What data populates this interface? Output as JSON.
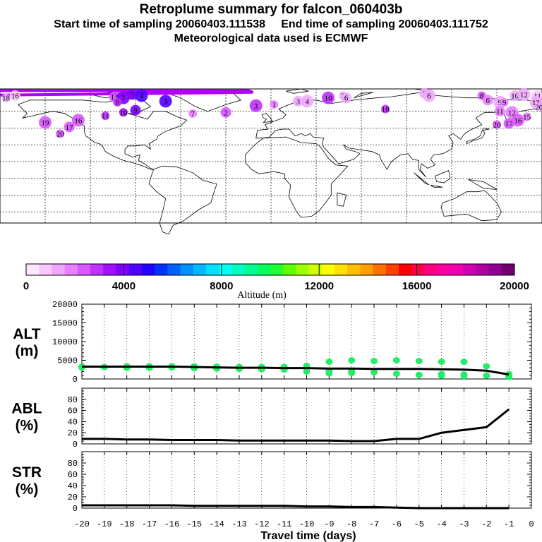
{
  "header": {
    "title": "Retroplume summary for falcon_060403b",
    "line2_start": "Start time of sampling 20060403.111538",
    "line2_end": "End time of sampling 20060403.111752",
    "line3": "Meteorological data used is ECMWF"
  },
  "colorbar": {
    "ticks": [
      "0",
      "4000",
      "8000",
      "12000",
      "16000",
      "20000"
    ],
    "label": "Altitude (m)",
    "colors": [
      "#ffe8ff",
      "#f8c8ff",
      "#f0a8ff",
      "#e880ff",
      "#d858ff",
      "#c030ff",
      "#a010ff",
      "#8000ff",
      "#5000ff",
      "#2000ff",
      "#0030ff",
      "#0060ff",
      "#0090ff",
      "#00b8ff",
      "#00e0ff",
      "#00ffee",
      "#00ffc0",
      "#00ff90",
      "#00ff60",
      "#20ff30",
      "#60ff00",
      "#a0ff00",
      "#d0ff00",
      "#ffff00",
      "#ffe000",
      "#ffc000",
      "#ffa000",
      "#ff7000",
      "#ff4000",
      "#ff0000",
      "#ff0050",
      "#ff0080",
      "#ff00a0",
      "#f000b0",
      "#d000b0",
      "#b000a0",
      "#900090",
      "#700070"
    ]
  },
  "map": {
    "plume_labels": [
      {
        "lon": -176,
        "lat": 72,
        "label": "18",
        "alt": 1200
      },
      {
        "lon": -170,
        "lat": 74,
        "label": "16",
        "alt": 800
      },
      {
        "lon": -150,
        "lat": 50,
        "label": "19",
        "alt": 2400
      },
      {
        "lon": -140,
        "lat": 40,
        "label": "20",
        "alt": 2600
      },
      {
        "lon": -134,
        "lat": 46,
        "label": "17",
        "alt": 2200
      },
      {
        "lon": -128,
        "lat": 52,
        "label": "16",
        "alt": 2500
      },
      {
        "lon": -110,
        "lat": 56,
        "label": "11",
        "alt": 2800
      },
      {
        "lon": -104,
        "lat": 73,
        "label": "13",
        "alt": 2600
      },
      {
        "lon": -98,
        "lat": 72,
        "label": "7",
        "alt": 3800
      },
      {
        "lon": -102,
        "lat": 68,
        "label": "8",
        "alt": 3000
      },
      {
        "lon": -92,
        "lat": 75,
        "label": "5",
        "alt": 4200
      },
      {
        "lon": -86,
        "lat": 74,
        "label": "4",
        "alt": 4600
      },
      {
        "lon": -98,
        "lat": 59,
        "label": "10",
        "alt": 3400
      },
      {
        "lon": -90,
        "lat": 61,
        "label": "9",
        "alt": 4100
      },
      {
        "lon": -70,
        "lat": 69,
        "label": "3",
        "alt": 4400
      },
      {
        "lon": -52,
        "lat": 58,
        "label": "7",
        "alt": 2000
      },
      {
        "lon": -30,
        "lat": 59,
        "label": "2",
        "alt": 2300
      },
      {
        "lon": -10,
        "lat": 65,
        "label": "3",
        "alt": 2700
      },
      {
        "lon": 2,
        "lat": 66,
        "label": "1",
        "alt": 1800
      },
      {
        "lon": 18,
        "lat": 69,
        "label": "3",
        "alt": 1500
      },
      {
        "lon": 24,
        "lat": 69,
        "label": "4",
        "alt": 1300
      },
      {
        "lon": 48,
        "lat": 74,
        "label": "5",
        "alt": 1200
      },
      {
        "lon": 50,
        "lat": 72,
        "label": "6",
        "alt": 1100
      },
      {
        "lon": 38,
        "lat": 72,
        "label": "10",
        "alt": 2900
      },
      {
        "lon": 76,
        "lat": 62,
        "label": "18",
        "alt": 2800
      },
      {
        "lon": 102,
        "lat": 76,
        "label": "7",
        "alt": 1400
      },
      {
        "lon": 105,
        "lat": 74,
        "label": "6",
        "alt": 1300
      },
      {
        "lon": 140,
        "lat": 74,
        "label": "8",
        "alt": 2600
      },
      {
        "lon": 144,
        "lat": 70,
        "label": "6",
        "alt": 1700
      },
      {
        "lon": 152,
        "lat": 68,
        "label": "9",
        "alt": 1500
      },
      {
        "lon": 155,
        "lat": 68,
        "label": "9",
        "alt": 1700
      },
      {
        "lon": 162,
        "lat": 74,
        "label": "10",
        "alt": 1200
      },
      {
        "lon": 168,
        "lat": 75,
        "label": "12",
        "alt": 1100
      },
      {
        "lon": 176,
        "lat": 73,
        "label": "15",
        "alt": 1000
      },
      {
        "lon": 183,
        "lat": 74,
        "label": "11",
        "alt": 1000
      },
      {
        "lon": 176,
        "lat": 68,
        "label": "13",
        "alt": 1300
      },
      {
        "lon": 182,
        "lat": 64,
        "label": "20",
        "alt": 1500
      },
      {
        "lon": 152,
        "lat": 60,
        "label": "11",
        "alt": 1800
      },
      {
        "lon": 160,
        "lat": 59,
        "label": "12",
        "alt": 1900
      },
      {
        "lon": 150,
        "lat": 48,
        "label": "20",
        "alt": 2200
      },
      {
        "lon": 158,
        "lat": 49,
        "label": "17",
        "alt": 2400
      },
      {
        "lon": 164,
        "lat": 52,
        "label": "16",
        "alt": 2300
      },
      {
        "lon": 170,
        "lat": 55,
        "label": "15",
        "alt": 1800
      }
    ]
  },
  "chart_data": [
    {
      "type": "line",
      "name": "ALT",
      "ylabel_top": "ALT",
      "ylabel_bottom": "(m)",
      "ylim": [
        0,
        20000
      ],
      "yticks": [
        "0",
        "5000",
        "10000",
        "15000",
        "20000"
      ],
      "x": [
        -20,
        -19,
        -18,
        -17,
        -16,
        -15,
        -14,
        -13,
        -12,
        -11,
        -10,
        -9,
        -8,
        -7,
        -6,
        -5,
        -4,
        -3,
        -2,
        -1
      ],
      "values": [
        3300,
        3300,
        3300,
        3300,
        3300,
        3200,
        3100,
        3000,
        3000,
        2900,
        2900,
        2800,
        2800,
        2700,
        2700,
        2700,
        2600,
        2500,
        2200,
        1200
      ],
      "scatter": [
        {
          "x": -20,
          "y": [
            3100,
            3300
          ]
        },
        {
          "x": -19,
          "y": [
            3200
          ]
        },
        {
          "x": -18,
          "y": [
            3000,
            3400
          ]
        },
        {
          "x": -17,
          "y": [
            3000,
            3400
          ]
        },
        {
          "x": -16,
          "y": [
            3100,
            3400
          ]
        },
        {
          "x": -15,
          "y": [
            2900,
            3400
          ]
        },
        {
          "x": -14,
          "y": [
            2800,
            3300
          ]
        },
        {
          "x": -13,
          "y": [
            2700,
            3200
          ]
        },
        {
          "x": -12,
          "y": [
            2600,
            3200
          ]
        },
        {
          "x": -11,
          "y": [
            2500,
            3200
          ]
        },
        {
          "x": -10,
          "y": [
            2000,
            3500
          ]
        },
        {
          "x": -9,
          "y": [
            1500,
            2200,
            4600
          ]
        },
        {
          "x": -8,
          "y": [
            1600,
            2200,
            5000
          ]
        },
        {
          "x": -7,
          "y": [
            1800,
            4800
          ]
        },
        {
          "x": -6,
          "y": [
            1400,
            5000
          ]
        },
        {
          "x": -5,
          "y": [
            1100,
            4800
          ]
        },
        {
          "x": -4,
          "y": [
            900,
            1300,
            4600
          ]
        },
        {
          "x": -3,
          "y": [
            800,
            1200,
            4600
          ]
        },
        {
          "x": -2,
          "y": [
            900,
            3400
          ]
        },
        {
          "x": -1,
          "y": [
            500,
            900,
            1300
          ]
        }
      ]
    },
    {
      "type": "line",
      "name": "ABL",
      "ylabel_top": "ABL",
      "ylabel_bottom": "(%)",
      "ylim": [
        0,
        100
      ],
      "yticks": [
        "0",
        "20",
        "40",
        "60",
        "80"
      ],
      "x": [
        -20,
        -19,
        -18,
        -17,
        -16,
        -15,
        -14,
        -13,
        -12,
        -11,
        -10,
        -9,
        -8,
        -7,
        -6,
        -5,
        -4,
        -3,
        -2,
        -1
      ],
      "values": [
        9,
        9,
        8,
        8,
        7,
        7,
        7,
        6,
        6,
        6,
        6,
        6,
        5,
        5,
        9,
        9,
        20,
        25,
        30,
        62
      ]
    },
    {
      "type": "line",
      "name": "STR",
      "ylabel_top": "STR",
      "ylabel_bottom": "(%)",
      "ylim": [
        0,
        100
      ],
      "yticks": [
        "0",
        "20",
        "40",
        "60",
        "80"
      ],
      "x": [
        -20,
        -19,
        -18,
        -17,
        -16,
        -15,
        -14,
        -13,
        -12,
        -11,
        -10,
        -9,
        -8,
        -7,
        -6,
        -5,
        -4,
        -3,
        -2,
        -1
      ],
      "values": [
        5,
        5,
        5,
        5,
        5,
        4,
        4,
        4,
        4,
        4,
        3,
        3,
        2,
        2,
        1,
        0,
        0,
        0,
        0,
        0
      ]
    }
  ],
  "xaxis": {
    "label": "Travel time (days)",
    "ticks": [
      "-20",
      "-19",
      "-18",
      "-17",
      "-16",
      "-15",
      "-14",
      "-13",
      "-12",
      "-11",
      "-10",
      "-9",
      "-8",
      "-7",
      "-6",
      "-5",
      "-4",
      "-3",
      "-2",
      "-1",
      "0"
    ]
  },
  "colors": {
    "line": "#000000",
    "scatter": "#22ee66",
    "plume_top": "#b000ff"
  }
}
